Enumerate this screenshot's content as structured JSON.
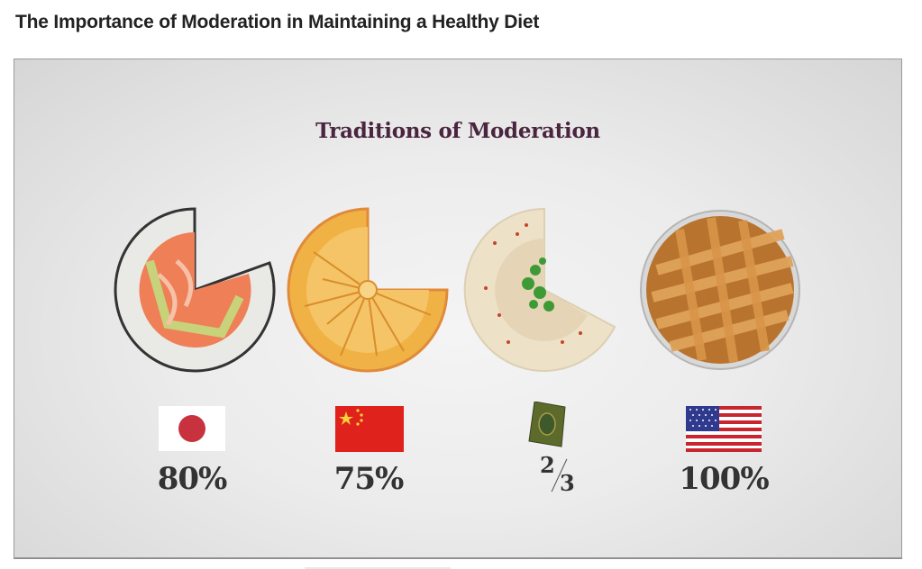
{
  "page": {
    "title": "The Importance of Moderation in Maintaining a Healthy Diet"
  },
  "slide": {
    "title": "Traditions of Moderation",
    "items": [
      {
        "food": "sushi-roll",
        "symbol": "japan-flag",
        "value": "80%",
        "fraction_eaten": 0.8
      },
      {
        "food": "mooncake",
        "symbol": "china-flag",
        "value": "75%",
        "fraction_eaten": 0.75
      },
      {
        "food": "hummus",
        "symbol": "quran-book",
        "value_numerator": "2",
        "value_denominator": "3",
        "fraction_eaten": 0.6667
      },
      {
        "food": "apple-pie",
        "symbol": "usa-flag",
        "value": "100%",
        "fraction_eaten": 1.0
      }
    ]
  },
  "colors": {
    "title_purple": "#4a2540",
    "japan_red": "#c8323f",
    "china_red": "#e0221c",
    "star_yellow": "#f6d23a",
    "usa_red": "#c9252e",
    "usa_blue": "#2f3a8f"
  }
}
